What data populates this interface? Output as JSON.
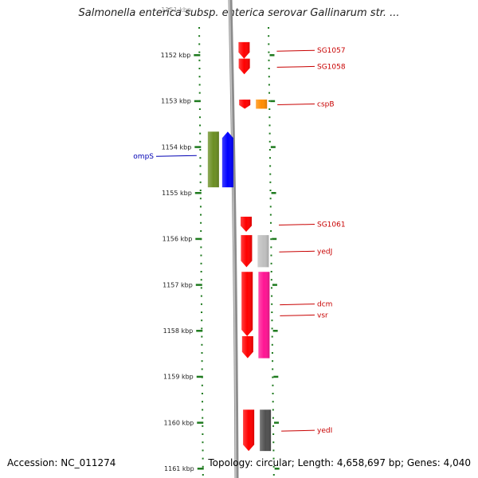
{
  "title": "Salmonella enterica subsp. enterica serovar Gallinarum str. ...",
  "accession_text": "Accession: NC_011274",
  "summary_text": "Topology: circular; Length: 4,658,697 bp; Genes: 4,040",
  "top_partial_label": "1151 kbp",
  "scale": {
    "ticks": [
      "1152 kbp",
      "1153 kbp",
      "1154 kbp",
      "1155 kbp",
      "1156 kbp",
      "1157 kbp",
      "1158 kbp",
      "1159 kbp",
      "1160 kbp",
      "1161 kbp"
    ],
    "tick_values": [
      1152,
      1153,
      1154,
      1155,
      1156,
      1157,
      1158,
      1159,
      1160,
      1161
    ]
  },
  "genes": [
    {
      "name": "SG1057",
      "strand": "right",
      "start": 1151.72,
      "end": 1152.08,
      "color": "#ff0000"
    },
    {
      "name": "SG1058",
      "strand": "right",
      "start": 1152.08,
      "end": 1152.42,
      "color": "#ff0000"
    },
    {
      "name": "cspB",
      "strand": "right",
      "start": 1152.97,
      "end": 1153.17,
      "color": "#ff0000"
    },
    {
      "name": "",
      "strand": "right2",
      "start": 1152.97,
      "end": 1153.17,
      "color": "#ff8c00"
    },
    {
      "name": "ompS",
      "strand": "left",
      "start": 1153.67,
      "end": 1154.88,
      "color": "#0000ff"
    },
    {
      "name": "",
      "strand": "left2",
      "start": 1153.67,
      "end": 1154.88,
      "color": "#6b8e23"
    },
    {
      "name": "",
      "strand": "left",
      "start": 1150.55,
      "end": 1150.8,
      "color": "#0000ff"
    },
    {
      "name": "SG1061",
      "strand": "right",
      "start": 1155.52,
      "end": 1155.85,
      "color": "#ff0000"
    },
    {
      "name": "yedJ",
      "strand": "right2",
      "start": 1155.92,
      "end": 1156.62,
      "color": "#c0c0c0"
    },
    {
      "name": "",
      "strand": "right",
      "start": 1155.92,
      "end": 1156.62,
      "color": "#ff0000"
    },
    {
      "name": "dcm",
      "strand": "right",
      "start": 1156.72,
      "end": 1158.12,
      "color": "#ff0000"
    },
    {
      "name": "vsr",
      "strand": "right2",
      "start": 1156.72,
      "end": 1158.6,
      "color": "#ff1493"
    },
    {
      "name": "",
      "strand": "right",
      "start": 1158.12,
      "end": 1158.6,
      "color": "#ff0000"
    },
    {
      "name": "yedI",
      "strand": "right",
      "start": 1159.72,
      "end": 1160.62,
      "color": "#ff0000"
    },
    {
      "name": "",
      "strand": "right2",
      "start": 1159.72,
      "end": 1160.62,
      "color": "#505050"
    }
  ]
}
